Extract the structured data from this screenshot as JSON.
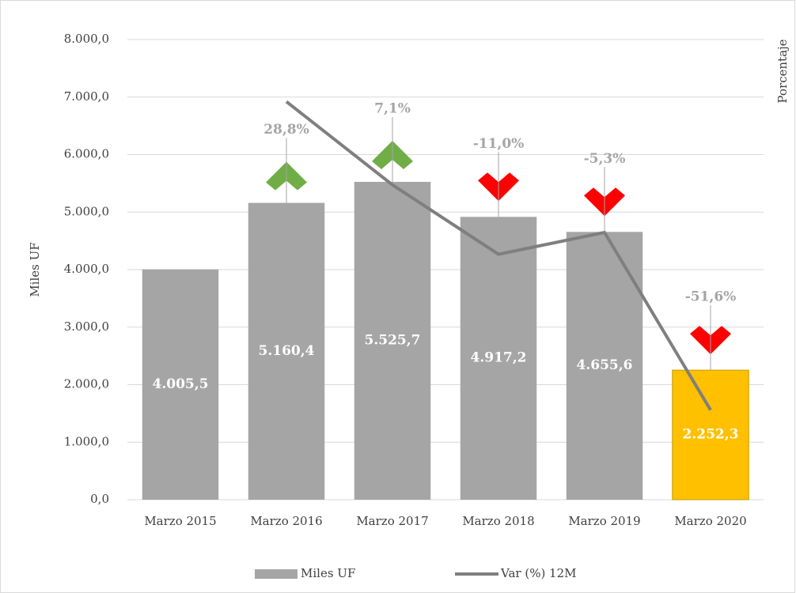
{
  "chart_data": {
    "type": "bar-line",
    "y_label": "Miles UF",
    "y2_label": "Porcentaje",
    "categories": [
      "Marzo 2015",
      "Marzo 2016",
      "Marzo 2017",
      "Marzo 2018",
      "Marzo 2019",
      "Marzo 2020"
    ],
    "series": [
      {
        "name": "Miles UF",
        "type": "bar",
        "color": "#a5a5a5",
        "colors": [
          "#a5a5a5",
          "#a5a5a5",
          "#a5a5a5",
          "#a5a5a5",
          "#a5a5a5",
          "#ffc000"
        ],
        "values": [
          4005.5,
          5160.4,
          5525.7,
          4917.2,
          4655.6,
          2252.3
        ],
        "value_labels": [
          "4.005,5",
          "5.160,4",
          "5.525,7",
          "4.917,2",
          "4.655,6",
          "2.252,3"
        ]
      },
      {
        "name": "Var (%) 12M",
        "type": "line",
        "axis": "y2",
        "color": "#7f7f7f",
        "up_color": "#70ad47",
        "down_color": "#ff0000",
        "values": [
          null,
          28.8,
          7.1,
          -11.0,
          -5.3,
          -51.6
        ],
        "value_labels": [
          null,
          "28,8%",
          "7,1%",
          "-11,0%",
          "-5,3%",
          "-51,6%"
        ]
      }
    ],
    "ylim": [
      0,
      8000
    ],
    "yticks": [
      {
        "value": 0,
        "label": "0,0"
      },
      {
        "value": 1000,
        "label": "1.000,0"
      },
      {
        "value": 2000,
        "label": "2.000,0"
      },
      {
        "value": 3000,
        "label": "3.000,0"
      },
      {
        "value": 4000,
        "label": "4.000,0"
      },
      {
        "value": 5000,
        "label": "5.000,0"
      },
      {
        "value": 6000,
        "label": "6.000,0"
      },
      {
        "value": 7000,
        "label": "7.000,0"
      },
      {
        "value": 8000,
        "label": "8.000,0"
      }
    ],
    "y2lim": [
      -75,
      45
    ],
    "grid": true,
    "legend": "bottom"
  }
}
